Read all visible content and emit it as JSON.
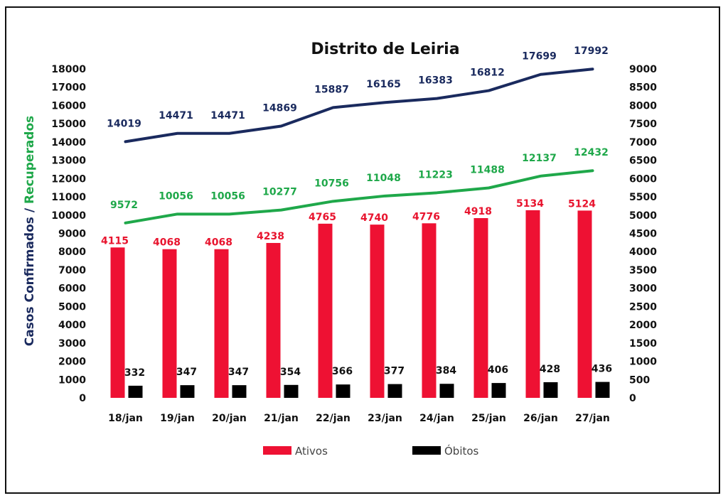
{
  "chart_data": {
    "type": "bar",
    "title": "Distrito de Leiria",
    "categories": [
      "18/jan",
      "19/jan",
      "20/jan",
      "21/jan",
      "22/jan",
      "23/jan",
      "24/jan",
      "25/jan",
      "26/jan",
      "27/jan"
    ],
    "ylabel_part1": "Casos Confirmados",
    "ylabel_sep": " / ",
    "ylabel_part2": "Recuperados",
    "ylim_left": [
      0,
      18000
    ],
    "ylim_right": [
      0,
      9000
    ],
    "left_ticks": [
      0,
      1000,
      2000,
      3000,
      4000,
      5000,
      6000,
      7000,
      8000,
      9000,
      10000,
      11000,
      12000,
      13000,
      14000,
      15000,
      16000,
      17000,
      18000
    ],
    "right_ticks": [
      0,
      500,
      1000,
      1500,
      2000,
      2500,
      3000,
      3500,
      4000,
      4500,
      5000,
      5500,
      6000,
      6500,
      7000,
      7500,
      8000,
      8500,
      9000
    ],
    "grid": false,
    "legend_position": "bottom",
    "lines": [
      {
        "values": [
          14019,
          14471,
          14471,
          14869,
          15887,
          16165,
          16383,
          16812,
          17699,
          17992
        ],
        "axis": "left",
        "color": "#1a2a5e"
      },
      {
        "values": [
          9572,
          10056,
          10056,
          10277,
          10756,
          11048,
          11223,
          11488,
          12137,
          12432
        ],
        "axis": "left",
        "color": "#1fa84a"
      }
    ],
    "bars": [
      {
        "name": "Ativos",
        "values": [
          4115,
          4068,
          4068,
          4238,
          4765,
          4740,
          4776,
          4918,
          5134,
          5124
        ],
        "axis": "right",
        "color": "#ee1133",
        "label_color": "#e8142e"
      },
      {
        "name": "Óbitos",
        "values": [
          332,
          347,
          347,
          354,
          366,
          377,
          384,
          406,
          428,
          436
        ],
        "axis": "right",
        "color": "#000000",
        "label_color": "#111111"
      }
    ],
    "ylabel_colors": {
      "part1": "#1a2a5e",
      "part2": "#1fa84a"
    }
  }
}
